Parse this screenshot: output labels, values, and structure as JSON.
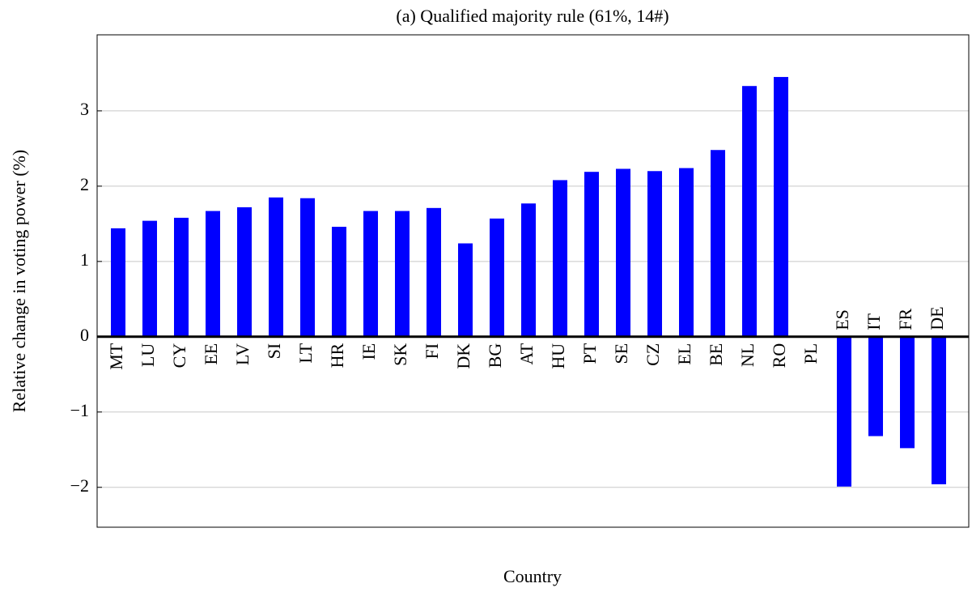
{
  "chart_data": {
    "type": "bar",
    "title": "(a) Qualified majority rule (61%, 14#)",
    "x_label": "Country",
    "y_label": "Relative change in voting power (%)",
    "categories": [
      "MT",
      "LU",
      "CY",
      "EE",
      "LV",
      "SI",
      "LT",
      "HR",
      "IE",
      "SK",
      "FI",
      "DK",
      "BG",
      "AT",
      "HU",
      "PT",
      "SE",
      "CZ",
      "EL",
      "BE",
      "NL",
      "RO",
      "PL",
      "ES",
      "IT",
      "FR",
      "DE"
    ],
    "values": [
      1.44,
      1.54,
      1.58,
      1.67,
      1.72,
      1.85,
      1.84,
      1.46,
      1.67,
      1.67,
      1.71,
      1.24,
      1.57,
      1.77,
      2.08,
      2.19,
      2.23,
      2.2,
      2.24,
      2.48,
      3.33,
      3.45,
      0,
      -1.99,
      -1.32,
      -1.48,
      -1.96
    ],
    "color": "#0000ff",
    "ylim": [
      -2.53,
      4.01
    ],
    "yticks": [
      {
        "value": -2,
        "label": "−2"
      },
      {
        "value": -1,
        "label": "−1"
      },
      0,
      1,
      2,
      3
    ],
    "grid": true
  }
}
